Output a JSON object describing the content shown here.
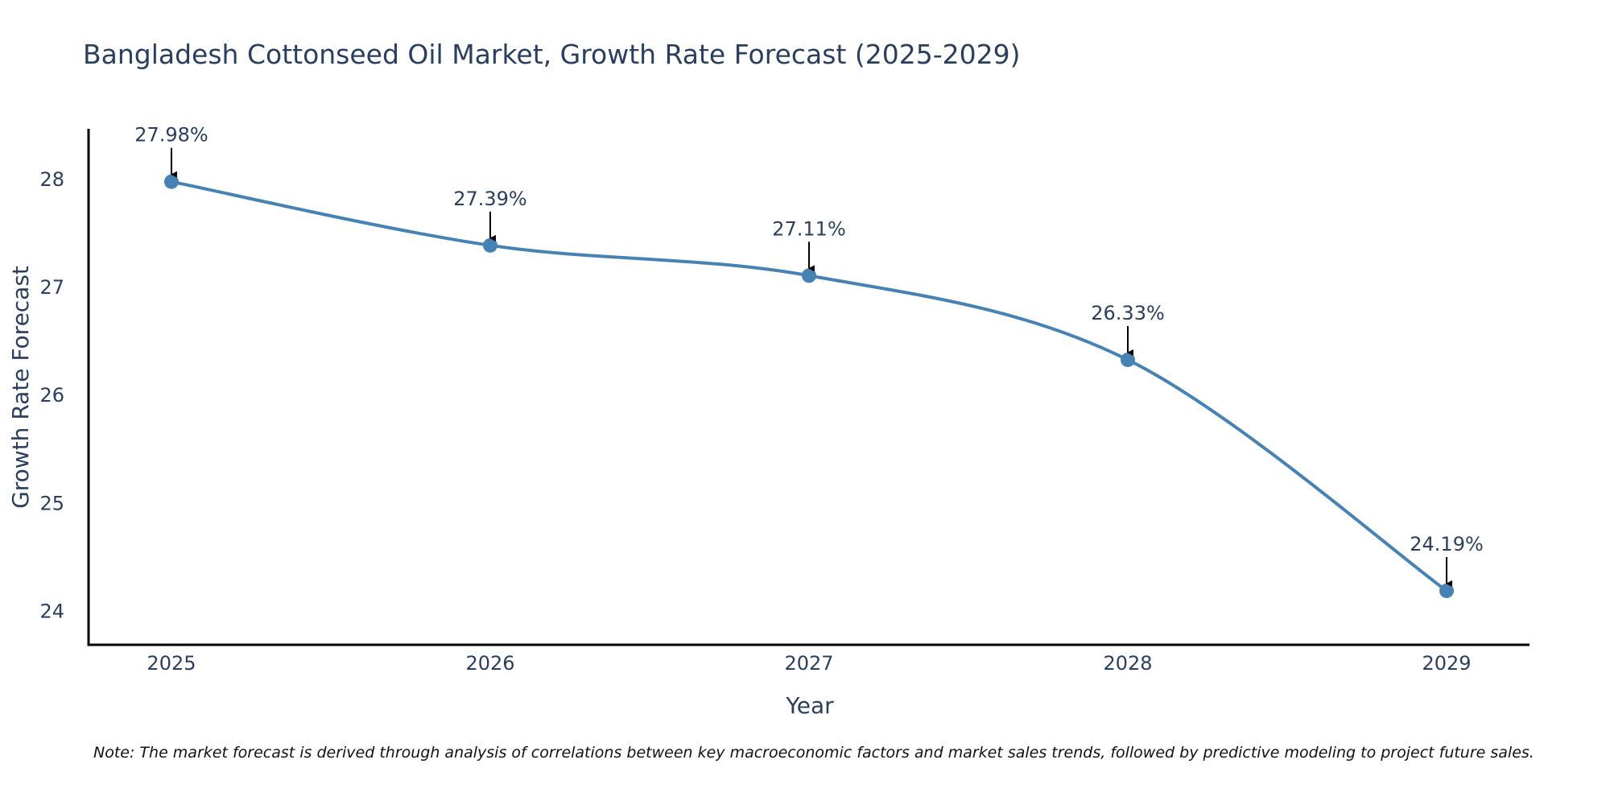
{
  "chart_data": {
    "type": "line",
    "title": "Bangladesh Cottonseed Oil Market, Growth Rate Forecast (2025-2029)",
    "xlabel": "Year",
    "ylabel": "Growth Rate Forecast",
    "x": [
      2025,
      2026,
      2027,
      2028,
      2029
    ],
    "x_tick_labels": [
      "2025",
      "2026",
      "2027",
      "2028",
      "2029"
    ],
    "series": [
      {
        "name": "Growth Rate Forecast",
        "values": [
          27.98,
          27.39,
          27.11,
          26.33,
          24.19
        ],
        "color": "#4682b4",
        "line_shape": "spline",
        "markers": true
      }
    ],
    "annotations": [
      "27.98%",
      "27.39%",
      "27.11%",
      "26.33%",
      "24.19%"
    ],
    "y_ticks": [
      24,
      25,
      26,
      27,
      28
    ],
    "y_tick_labels": [
      "24",
      "25",
      "26",
      "27",
      "28"
    ],
    "xlim": [
      2024.74,
      2029.26
    ],
    "ylim": [
      23.69,
      28.47
    ],
    "grid": false,
    "legend": "none"
  },
  "note": "Note: The market forecast is derived through analysis of correlations between key macroeconomic factors and market sales trends, followed by predictive modeling to project future sales."
}
